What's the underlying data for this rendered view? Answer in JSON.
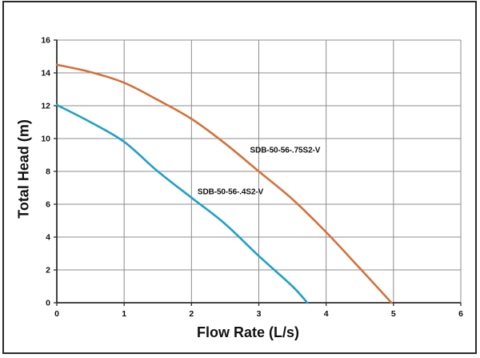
{
  "frame": {
    "border_color": "#2a2a2a",
    "background": "#ffffff"
  },
  "chart_data": {
    "type": "line",
    "title": "",
    "xlabel": "Flow Rate (L/s)",
    "ylabel": "Total Head (m)",
    "xlim": [
      0,
      6
    ],
    "ylim": [
      0,
      16
    ],
    "xticks": [
      0,
      1,
      2,
      3,
      4,
      5,
      6
    ],
    "yticks": [
      0,
      2,
      4,
      6,
      8,
      10,
      12,
      14,
      16
    ],
    "grid": true,
    "grid_color": "#8c8c8c",
    "axis_color": "#2d2d2d",
    "text_color": "#111111",
    "legend_position": "inline-curve-labels",
    "series": [
      {
        "name": "SDB-50-56-.75S2-V",
        "color": "#d4713b",
        "x": [
          0,
          0.5,
          1,
          1.5,
          2,
          2.5,
          3,
          3.5,
          4,
          4.5,
          4.97
        ],
        "y": [
          14.5,
          14.05,
          13.4,
          12.35,
          11.2,
          9.7,
          8.0,
          6.3,
          4.3,
          2.1,
          0
        ],
        "label_anchor": {
          "x": 2.87,
          "y": 9.25
        }
      },
      {
        "name": "SDB-50-56-.4S2-V",
        "color": "#21a0c6",
        "x": [
          0,
          0.5,
          1,
          1.5,
          2,
          2.5,
          3,
          3.5,
          3.72
        ],
        "y": [
          12.05,
          11.0,
          9.8,
          8.0,
          6.4,
          4.8,
          2.85,
          1.0,
          0
        ],
        "label_anchor": {
          "x": 2.09,
          "y": 6.74
        }
      }
    ]
  }
}
